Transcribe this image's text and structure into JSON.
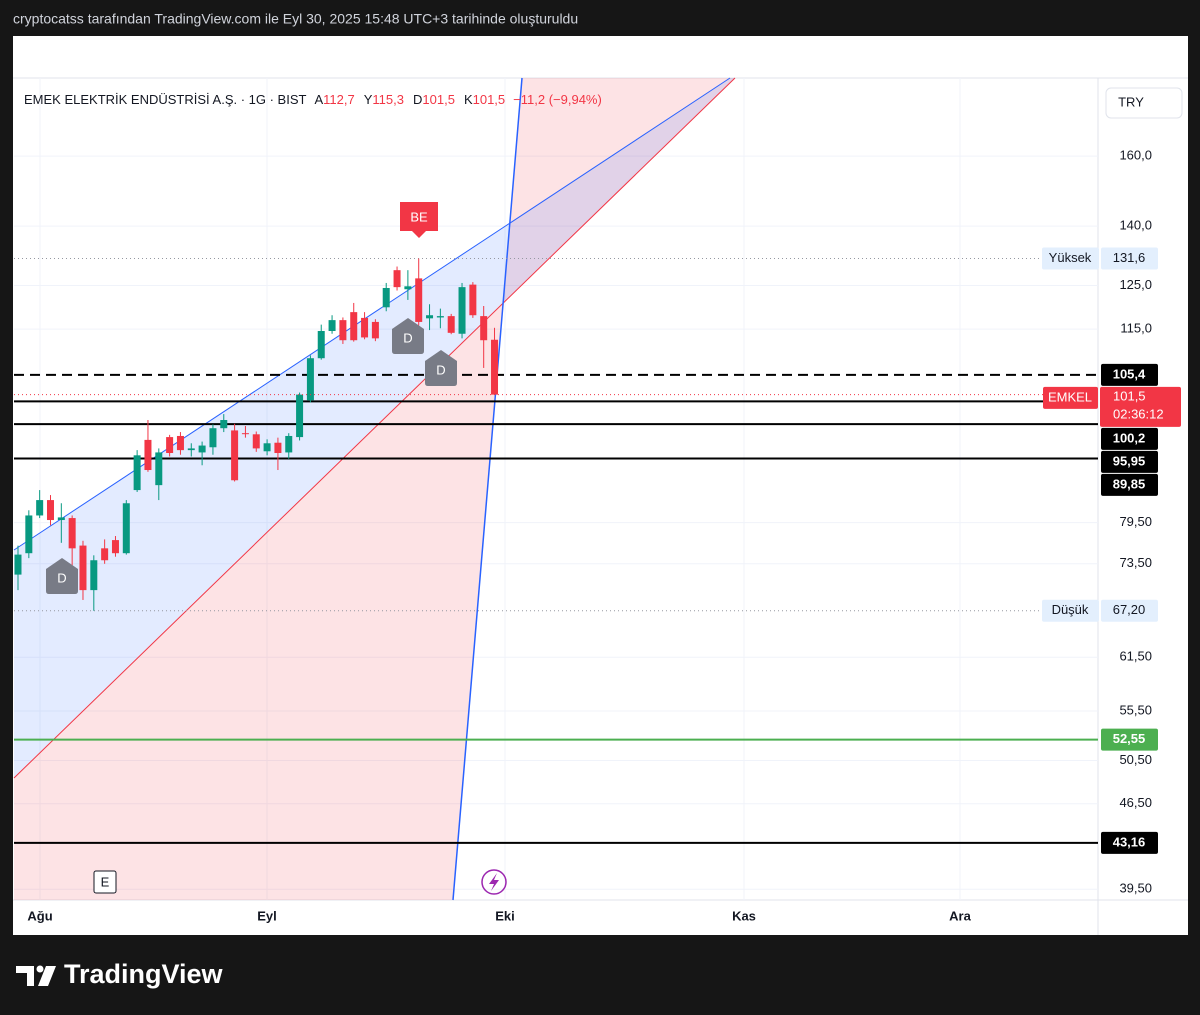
{
  "caption": "cryptocatss tarafından TradingView.com ile Eyl 30, 2025 15:48 UTC+3 tarihinde oluşturuldu",
  "brand": "TradingView",
  "chart_data": {
    "type": "candlestick",
    "title": "EMEK ELEKTRİK ENDÜSTRİSİ A.Ş. · 1G · BIST",
    "ohlc_header": [
      {
        "label": "A",
        "value": "112,7"
      },
      {
        "label": "Y",
        "value": "115,3"
      },
      {
        "label": "D",
        "value": "101,5"
      },
      {
        "label": "K",
        "value": "101,5"
      }
    ],
    "change_label": "−11,2 (−9,94%)",
    "currency": "TRY",
    "log_scale": true,
    "grid": true,
    "ylim": [
      38.7,
      185.7
    ],
    "yticks": [
      {
        "value": 160,
        "label": "160,0"
      },
      {
        "value": 140,
        "label": "140,0"
      },
      {
        "value": 125,
        "label": "125,0"
      },
      {
        "value": 115,
        "label": "115,0"
      },
      {
        "value": 79.5,
        "label": "79,50"
      },
      {
        "value": 73.5,
        "label": "73,50"
      },
      {
        "value": 61.5,
        "label": "61,50"
      },
      {
        "value": 55.5,
        "label": "55,50"
      },
      {
        "value": 50.5,
        "label": "50,50"
      },
      {
        "value": 46.5,
        "label": "46,50"
      },
      {
        "value": 39.5,
        "label": "39,50"
      }
    ],
    "x_labels": [
      "Ağu",
      "Eyl",
      "Eki",
      "Kas",
      "Ara"
    ],
    "up_color": "#089981",
    "down_color": "#f23645",
    "candles": {
      "open": [
        72.0,
        75.0,
        80.6,
        83.0,
        79.9,
        80.2,
        76.1,
        69.9,
        75.7,
        76.9,
        75.0,
        84.6,
        93.1,
        85.4,
        93.6,
        93.8,
        91.3,
        90.9,
        91.8,
        95.2,
        94.8,
        94.3,
        94.1,
        91.1,
        92.6,
        90.9,
        93.6,
        100.4,
        108.8,
        114.6,
        117.0,
        118.8,
        117.5,
        116.6,
        119.9,
        128.7,
        124.1,
        126.7,
        117.4,
        117.6,
        117.9,
        114.0,
        125.2,
        117.9,
        112.7
      ],
      "high": [
        76.1,
        81.4,
        84.6,
        83.8,
        82.5,
        80.6,
        76.8,
        74.7,
        77.0,
        77.5,
        83.0,
        91.3,
        96.7,
        91.6,
        94.0,
        94.5,
        92.5,
        92.8,
        95.9,
        97.8,
        96.0,
        95.6,
        94.6,
        93.2,
        93.5,
        94.3,
        101.9,
        109.4,
        116.0,
        118.1,
        117.6,
        120.9,
        118.8,
        117.2,
        125.6,
        129.6,
        128.7,
        131.6,
        120.6,
        119.6,
        118.4,
        125.6,
        125.8,
        120.2,
        115.3
      ],
      "low": [
        69.9,
        74.3,
        80.2,
        79.1,
        76.5,
        72.6,
        68.6,
        67.2,
        73.5,
        74.5,
        74.8,
        84.3,
        87.6,
        83.0,
        90.2,
        90.5,
        90.2,
        88.7,
        90.5,
        94.5,
        86.0,
        93.5,
        91.0,
        90.4,
        87.9,
        89.8,
        93.0,
        100.0,
        108.5,
        114.0,
        111.8,
        112.3,
        112.8,
        112.4,
        119.0,
        123.8,
        121.6,
        115.8,
        114.8,
        115.2,
        113.9,
        113.0,
        117.5,
        106.8,
        101.5
      ],
      "close": [
        74.8,
        80.6,
        83.0,
        79.9,
        80.3,
        75.7,
        69.9,
        74.0,
        74.0,
        75.0,
        82.5,
        90.4,
        87.9,
        90.9,
        90.8,
        91.3,
        91.6,
        92.1,
        95.2,
        96.7,
        86.2,
        94.2,
        91.6,
        92.5,
        90.8,
        93.8,
        101.5,
        108.8,
        114.6,
        117.0,
        112.6,
        112.6,
        113.2,
        113.0,
        124.4,
        124.6,
        124.8,
        116.6,
        118.1,
        117.9,
        114.2,
        124.6,
        118.1,
        112.6,
        101.5
      ]
    },
    "price_lines": [
      {
        "value": 105.4,
        "label": "105,4",
        "style": "dashed",
        "color": "#000000"
      },
      {
        "value": 100.2,
        "label": "100,2",
        "style": "solid",
        "color": "#000000"
      },
      {
        "value": 95.95,
        "label": "95,95",
        "style": "solid",
        "color": "#000000"
      },
      {
        "value": 89.85,
        "label": "89,85",
        "style": "solid",
        "color": "#000000"
      },
      {
        "value": 52.55,
        "label": "52,55",
        "style": "solid",
        "color": "#4caf50"
      },
      {
        "value": 43.16,
        "label": "43,16",
        "style": "solid",
        "color": "#000000"
      }
    ],
    "high_marker": {
      "name": "Yüksek",
      "value": 131.6,
      "label": "131,6"
    },
    "low_marker": {
      "name": "Düşük",
      "value": 67.2,
      "label": "67,20"
    },
    "last_price": {
      "symbol": "EMKEL",
      "value": 101.5,
      "label": "101,5",
      "countdown": "02:36:12"
    },
    "markers": [
      "D",
      "D",
      "D",
      "BE",
      "E"
    ]
  }
}
